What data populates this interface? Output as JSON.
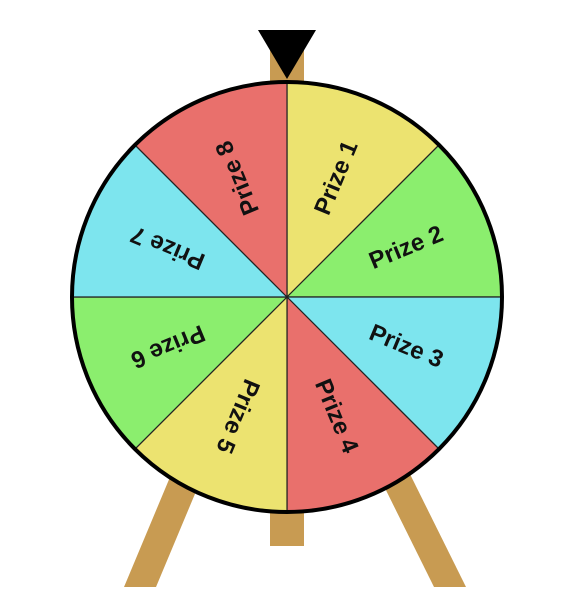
{
  "game": {
    "segments": [
      {
        "label": "Prize 1",
        "color": "#ECE370"
      },
      {
        "label": "Prize 2",
        "color": "#8BEE6E"
      },
      {
        "label": "Prize 3",
        "color": "#7DE5EE"
      },
      {
        "label": "Prize 4",
        "color": "#E9706C"
      },
      {
        "label": "Prize 5",
        "color": "#ECE370"
      },
      {
        "label": "Prize 6",
        "color": "#8BEE6E"
      },
      {
        "label": "Prize 7",
        "color": "#7DE5EE"
      },
      {
        "label": "Prize 8",
        "color": "#E9706C"
      }
    ],
    "stand_color": "#C89B52",
    "pointer_color": "#000000",
    "rim_color": "#000000"
  }
}
